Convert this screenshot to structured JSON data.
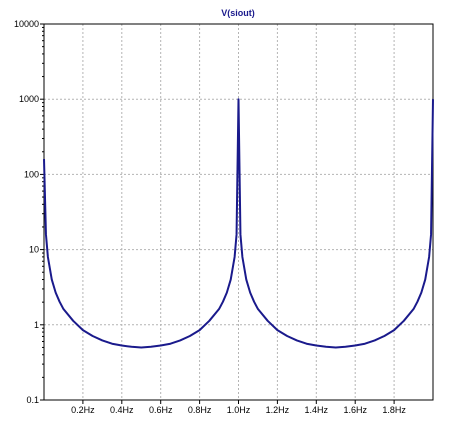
{
  "chart_data": {
    "type": "line",
    "title": "V(siout)",
    "xlabel": "",
    "ylabel": "",
    "x_ticks": [
      0.2,
      0.4,
      0.6,
      0.8,
      1.0,
      1.2,
      1.4,
      1.6,
      1.8
    ],
    "x_tick_labels": [
      "0.2Hz",
      "0.4Hz",
      "0.6Hz",
      "0.8Hz",
      "1.0Hz",
      "1.2Hz",
      "1.4Hz",
      "1.6Hz",
      "1.8Hz"
    ],
    "xlim": [
      0.0,
      2.0
    ],
    "y_scale": "log",
    "y_ticks": [
      0.1,
      1,
      10,
      100,
      1000,
      10000
    ],
    "y_tick_labels": [
      "0.1",
      "1",
      "10",
      "100",
      "1000",
      "10000"
    ],
    "ylim": [
      0.1,
      10000
    ],
    "grid": true,
    "colors": {
      "series": "#1a1a8c",
      "title": "#1a1a8c",
      "grid": "#b4b4b4",
      "axis": "#000000"
    },
    "series": [
      {
        "x": [
          0.0,
          0.01,
          0.02,
          0.04,
          0.06,
          0.08,
          0.1,
          0.15,
          0.2,
          0.25,
          0.3,
          0.35,
          0.4,
          0.45,
          0.5,
          0.55,
          0.6,
          0.65,
          0.7,
          0.75,
          0.8,
          0.85,
          0.9,
          0.92,
          0.94,
          0.96,
          0.98,
          0.99,
          1.0,
          1.01,
          1.02,
          1.04,
          1.06,
          1.08,
          1.1,
          1.15,
          1.2,
          1.25,
          1.3,
          1.35,
          1.4,
          1.45,
          1.5,
          1.55,
          1.6,
          1.65,
          1.7,
          1.75,
          1.8,
          1.85,
          1.9,
          1.92,
          1.94,
          1.96,
          1.98,
          1.99,
          2.0
        ],
        "y": [
          160,
          15.9,
          7.97,
          4.0,
          2.68,
          2.03,
          1.62,
          1.13,
          0.85,
          0.71,
          0.62,
          0.56,
          0.53,
          0.51,
          0.5,
          0.51,
          0.53,
          0.56,
          0.62,
          0.71,
          0.85,
          1.13,
          1.62,
          2.03,
          2.68,
          4.0,
          7.97,
          15.9,
          1000,
          15.9,
          7.97,
          4.0,
          2.68,
          2.03,
          1.62,
          1.13,
          0.85,
          0.71,
          0.62,
          0.56,
          0.53,
          0.51,
          0.5,
          0.51,
          0.53,
          0.56,
          0.62,
          0.71,
          0.85,
          1.13,
          1.62,
          2.03,
          2.68,
          4.0,
          7.97,
          15.9,
          1000
        ]
      }
    ]
  }
}
